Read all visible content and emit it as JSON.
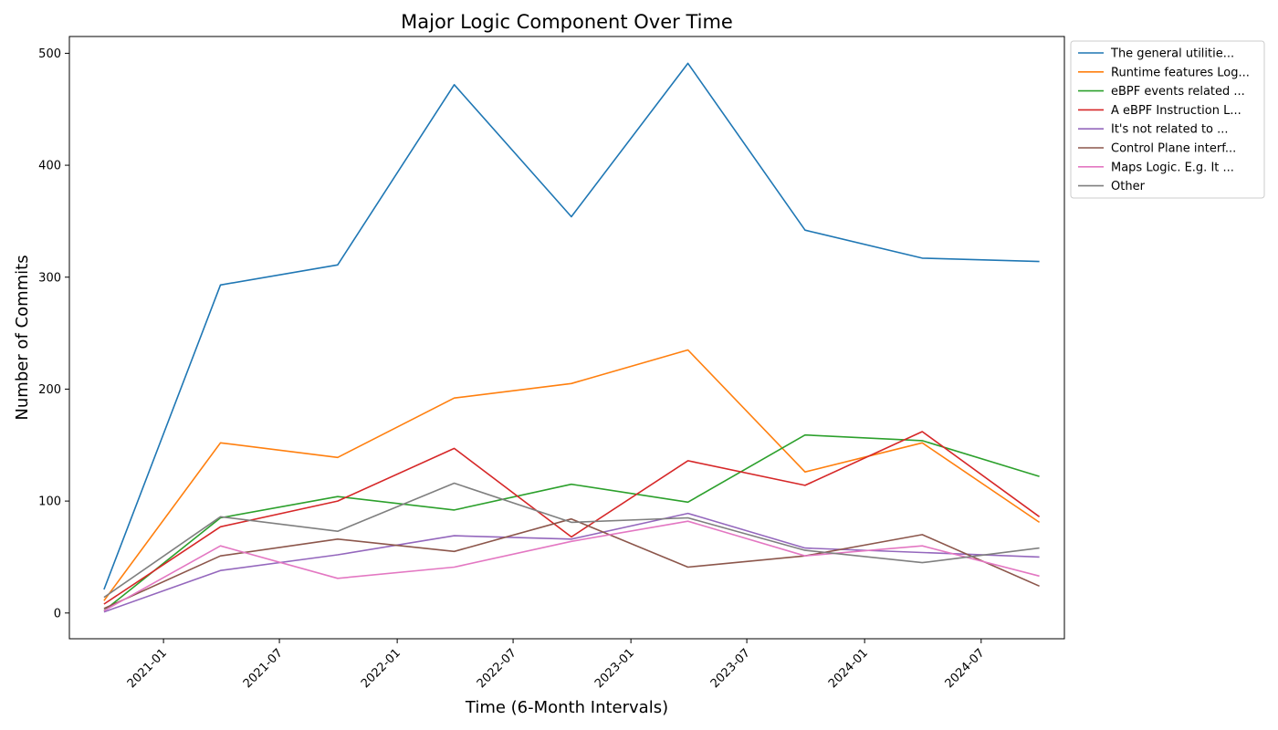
{
  "chart_data": {
    "type": "line",
    "title": "Major Logic Component Over Time",
    "xlabel": "Time (6-Month Intervals)",
    "ylabel": "Number of Commits",
    "x": [
      "2020-09-30",
      "2021-03-31",
      "2021-09-30",
      "2022-03-31",
      "2022-09-30",
      "2023-03-31",
      "2023-09-30",
      "2024-03-31",
      "2024-09-30"
    ],
    "xticks": [
      "2021-01",
      "2021-07",
      "2022-01",
      "2022-07",
      "2023-01",
      "2023-07",
      "2024-01",
      "2024-07"
    ],
    "yticks": [
      0,
      100,
      200,
      300,
      400,
      500
    ],
    "ylim": [
      -23,
      515
    ],
    "grid": false,
    "legend_position": "outside-top-right",
    "series": [
      {
        "name": "The general utilitie...",
        "color": "#1f77b4",
        "values": [
          21,
          293,
          311,
          472,
          354,
          491,
          342,
          317,
          314
        ]
      },
      {
        "name": "Runtime features Log...",
        "color": "#ff7f0e",
        "values": [
          11,
          152,
          139,
          192,
          205,
          235,
          126,
          152,
          81
        ]
      },
      {
        "name": "eBPF events related ...",
        "color": "#2ca02c",
        "values": [
          2,
          85,
          104,
          92,
          115,
          99,
          159,
          154,
          122
        ]
      },
      {
        "name": "A eBPF Instruction L...",
        "color": "#d62728",
        "values": [
          8,
          77,
          100,
          147,
          68,
          136,
          114,
          162,
          86
        ]
      },
      {
        "name": "It's not related to ...",
        "color": "#9467bd",
        "values": [
          1,
          38,
          52,
          69,
          66,
          89,
          58,
          54,
          50
        ]
      },
      {
        "name": "Control Plane interf...",
        "color": "#8c564b",
        "values": [
          4,
          51,
          66,
          55,
          84,
          41,
          51,
          70,
          24
        ]
      },
      {
        "name": "Maps Logic. E.g. It ...",
        "color": "#e377c2",
        "values": [
          2,
          60,
          31,
          41,
          64,
          82,
          51,
          60,
          33
        ]
      },
      {
        "name": "Other",
        "color": "#7f7f7f",
        "values": [
          14,
          86,
          73,
          116,
          81,
          85,
          56,
          45,
          58
        ]
      }
    ]
  }
}
